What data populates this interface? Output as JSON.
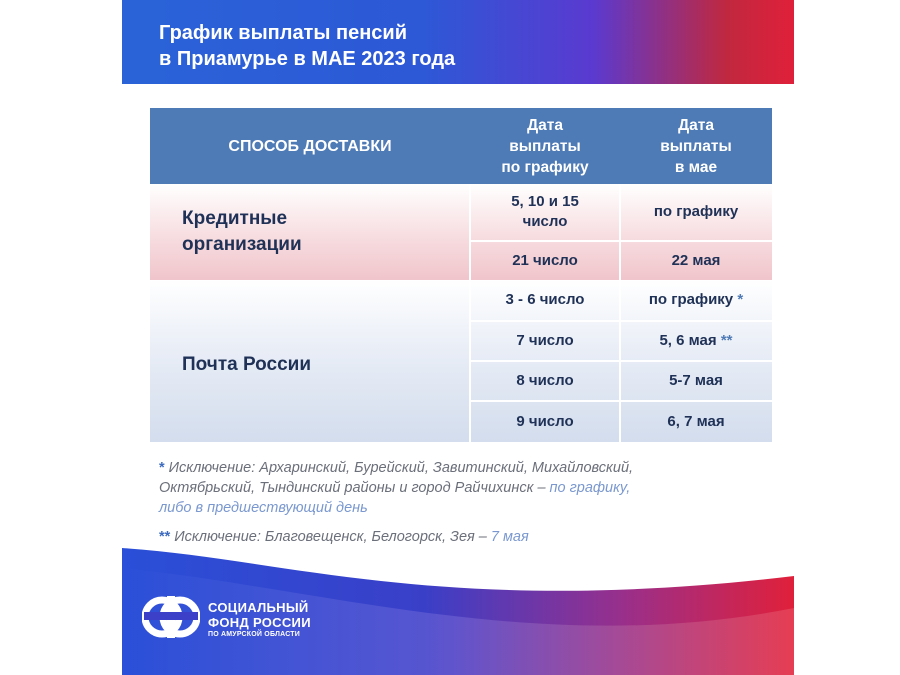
{
  "header": {
    "title_line1": "График выплаты пенсий",
    "title_line2": "в Приамурье в МАЕ 2023 года"
  },
  "table": {
    "col_delivery": "СПОСОБ ДОСТАВКИ",
    "col_schedule": [
      "Дата",
      "выплаты",
      "по графику"
    ],
    "col_may": [
      "Дата",
      "выплаты",
      "в мае"
    ],
    "credit": {
      "label": [
        "Кредитные",
        "организации"
      ],
      "rows": [
        {
          "schedule": [
            "5, 10 и 15",
            "число"
          ],
          "may": "по графику"
        },
        {
          "schedule": [
            "21 число"
          ],
          "may": "22 мая"
        }
      ]
    },
    "post": {
      "label": "Почта России",
      "rows": [
        {
          "schedule": "3 - 6 число",
          "may": "по графику",
          "mark": "*"
        },
        {
          "schedule": "7 число",
          "may": "5, 6 мая",
          "mark": "**"
        },
        {
          "schedule": "8 число",
          "may": "5-7 мая",
          "mark": ""
        },
        {
          "schedule": "9 число",
          "may": "6, 7 мая",
          "mark": ""
        }
      ]
    }
  },
  "notes": {
    "note1_mark": "*",
    "note1_line1": "Исключение: Архаринский, Бурейский, Завитинский, Михайловский,",
    "note1_line2": "Октябрьский, Тындинский районы и город Райчихинск –",
    "note1_accent1": "по графику,",
    "note1_line3": "либо в предшествующий день",
    "note2_mark": "**",
    "note2_text": "Исключение: Благовещенск, Белогорск, Зея –",
    "note2_accent": "7 мая"
  },
  "footer": {
    "logo_line1": "СОЦИАЛЬНЫЙ",
    "logo_line2": "ФОНД РОССИИ",
    "logo_line3": "ПО АМУРСКОЙ ОБЛАСТИ",
    "logo_icon": "sfr-logo-icon"
  },
  "colors": {
    "header_blue": "#2a63d8",
    "header_red": "#e0203a",
    "table_header": "#4e7ab5",
    "text_dark": "#1f3156"
  }
}
